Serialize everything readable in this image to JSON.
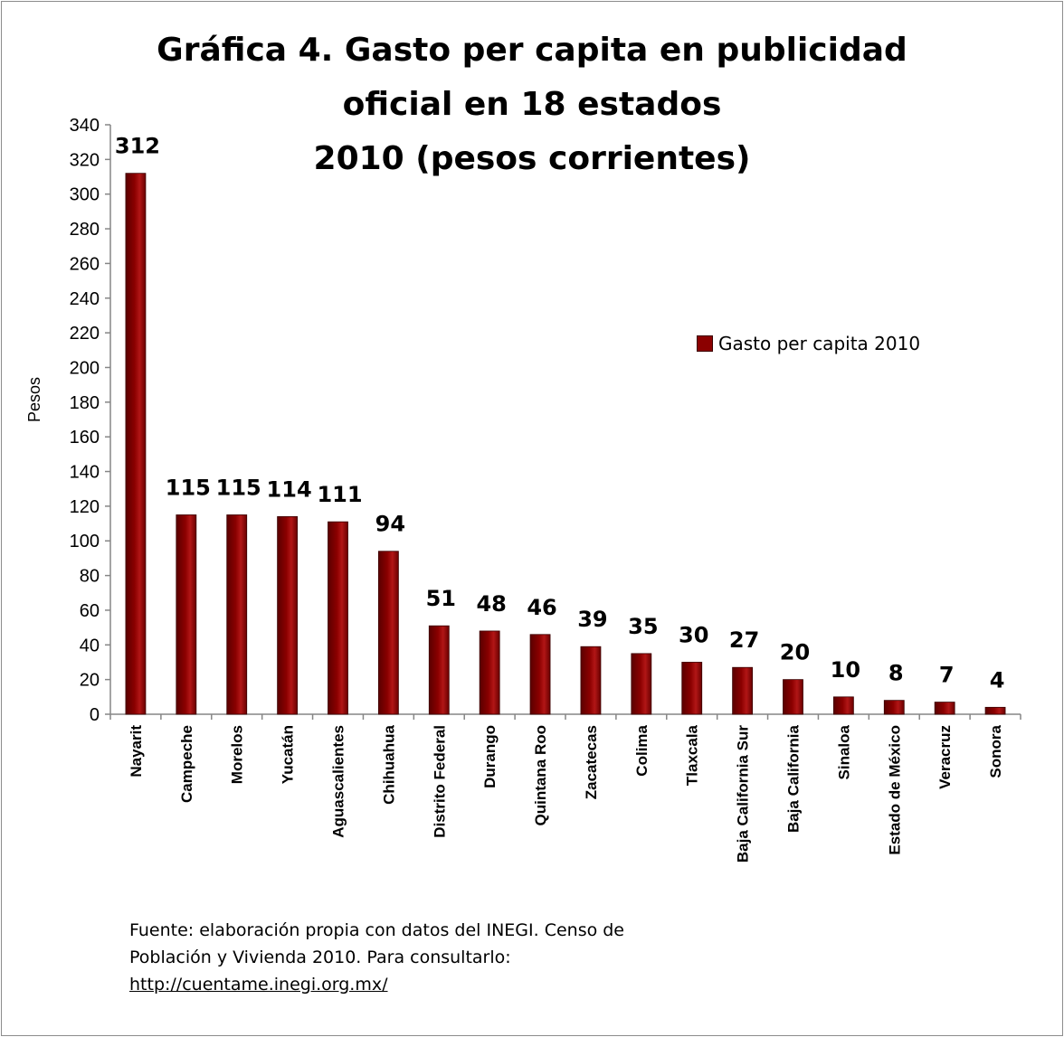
{
  "chart_data": {
    "type": "bar",
    "title": [
      "Gráfica 4. Gasto per capita en publicidad",
      "oficial en 18 estados",
      "2010 (pesos corrientes)"
    ],
    "ylabel": "Pesos",
    "xlabel": "",
    "ylim": [
      0,
      340
    ],
    "yticks": [
      0,
      20,
      40,
      60,
      80,
      100,
      120,
      140,
      160,
      180,
      200,
      220,
      240,
      260,
      280,
      300,
      320,
      340
    ],
    "categories": [
      "Nayarit",
      "Campeche",
      "Morelos",
      "Yucatán",
      "Aguascalientes",
      "Chihuahua",
      "Distrito Federal",
      "Durango",
      "Quintana Roo",
      "Zacatecas",
      "Colima",
      "Tlaxcala",
      "Baja California Sur",
      "Baja California",
      "Sinaloa",
      "Estado de México",
      "Veracruz",
      "Sonora"
    ],
    "series": [
      {
        "name": "Gasto per capita 2010",
        "values": [
          312,
          115,
          115,
          114,
          111,
          94,
          51,
          48,
          46,
          39,
          35,
          30,
          27,
          20,
          10,
          8,
          7,
          4
        ]
      }
    ],
    "bar_color": "#8b0000",
    "legend": "right",
    "grid": false
  },
  "source": {
    "line1": "Fuente: elaboración propia con datos del INEGI. Censo de",
    "line2": "Población y Vivienda 2010. Para consultarlo:",
    "link": "http://cuentame.inegi.org.mx/"
  }
}
